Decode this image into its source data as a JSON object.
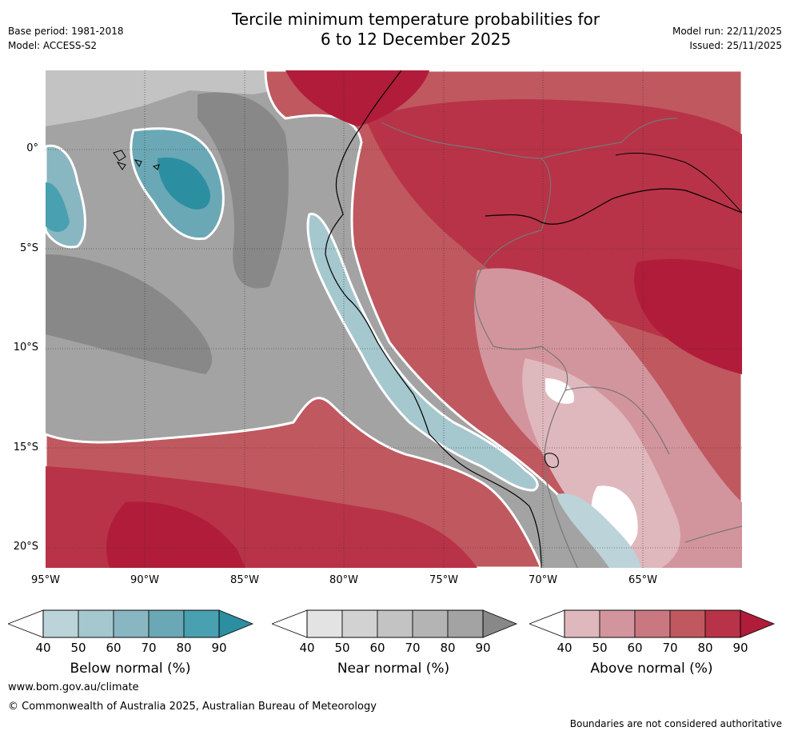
{
  "header": {
    "title_line1": "Tercile minimum temperature probabilities for",
    "title_line2": "6 to 12 December 2025",
    "base_period": "Base period: 1981-2018",
    "model": "Model: ACCESS-S2",
    "model_run": "Model run: 22/11/2025",
    "issued": "Issued: 25/11/2025"
  },
  "map": {
    "lat_labels": [
      "0°",
      "5°S",
      "10°S",
      "15°S",
      "20°S"
    ],
    "lon_labels": [
      "95°W",
      "90°W",
      "85°W",
      "80°W",
      "75°W",
      "70°W",
      "65°W"
    ],
    "lat_range": [
      -21,
      4
    ],
    "lon_range": [
      -95,
      -60
    ]
  },
  "legends": [
    {
      "title": "Below normal (%)",
      "ticks": [
        "40",
        "50",
        "60",
        "70",
        "80",
        "90"
      ],
      "colors": [
        "#bbd3d9",
        "#a5c7ce",
        "#88b6c1",
        "#6aa8b5",
        "#48a0b0",
        "#2c8fa1"
      ]
    },
    {
      "title": "Near normal (%)",
      "ticks": [
        "40",
        "50",
        "60",
        "70",
        "80",
        "90"
      ],
      "colors": [
        "#e3e3e3",
        "#d2d2d2",
        "#c3c3c3",
        "#b4b4b4",
        "#a3a3a3",
        "#888888"
      ]
    },
    {
      "title": "Above normal (%)",
      "ticks": [
        "40",
        "50",
        "60",
        "70",
        "80",
        "90"
      ],
      "colors": [
        "#dfb8bd",
        "#d3959d",
        "#c97881",
        "#c0585f",
        "#b83347",
        "#b01c3a"
      ]
    }
  ],
  "footer": {
    "url": "www.bom.gov.au/climate",
    "copyright": "© Commonwealth of Australia 2025, Australian Bureau of Meteorology",
    "disclaimer": "Boundaries are not considered authoritative"
  }
}
